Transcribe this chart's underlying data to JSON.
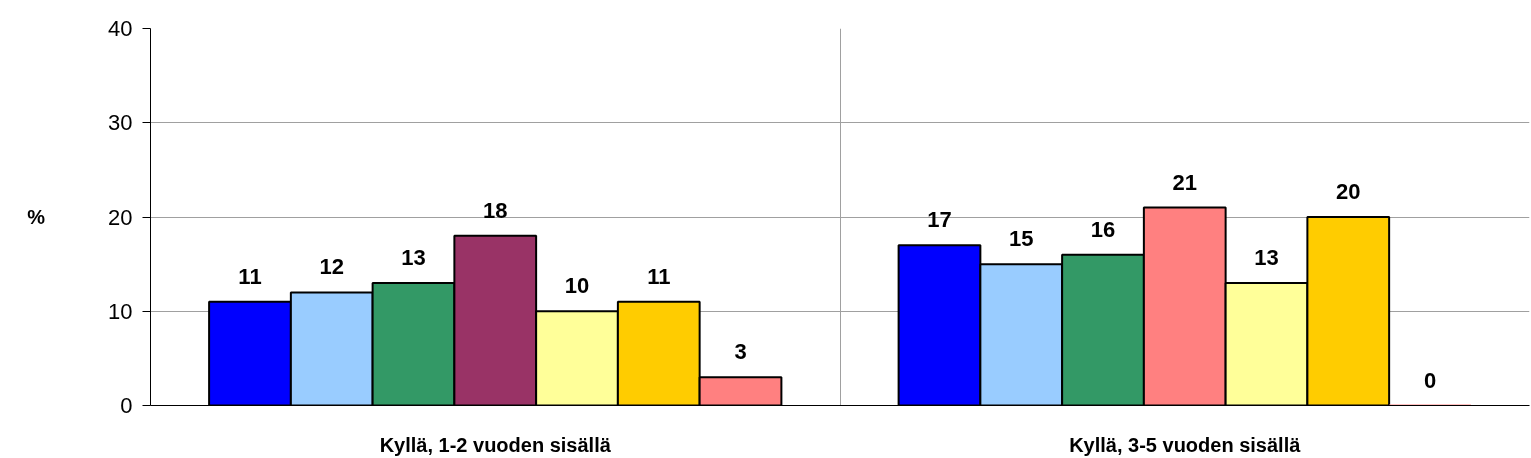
{
  "chart_data": {
    "type": "bar",
    "ylabel": "%",
    "categories": [
      "Kyllä, 1-2 vuoden sisällä",
      "Kyllä, 3-5 vuoden sisällä"
    ],
    "series": [
      {
        "colors": [
          "#0000ff",
          "#0000ff"
        ],
        "values": [
          11,
          17
        ]
      },
      {
        "colors": [
          "#99ccff",
          "#99ccff"
        ],
        "values": [
          12,
          15
        ]
      },
      {
        "colors": [
          "#339966",
          "#339966"
        ],
        "values": [
          13,
          16
        ]
      },
      {
        "colors": [
          "#993366",
          "#ff8080"
        ],
        "values": [
          18,
          21
        ]
      },
      {
        "colors": [
          "#ffff99",
          "#ffff99"
        ],
        "values": [
          10,
          13
        ]
      },
      {
        "colors": [
          "#ffcc00",
          "#ffcc00"
        ],
        "values": [
          11,
          20
        ]
      },
      {
        "colors": [
          "#ff8080",
          "#ff8080"
        ],
        "values": [
          3,
          0
        ]
      }
    ],
    "ylim": [
      0,
      40
    ],
    "yticks": [
      0,
      10,
      20,
      30,
      40
    ],
    "grid": true,
    "data_labels": true
  }
}
